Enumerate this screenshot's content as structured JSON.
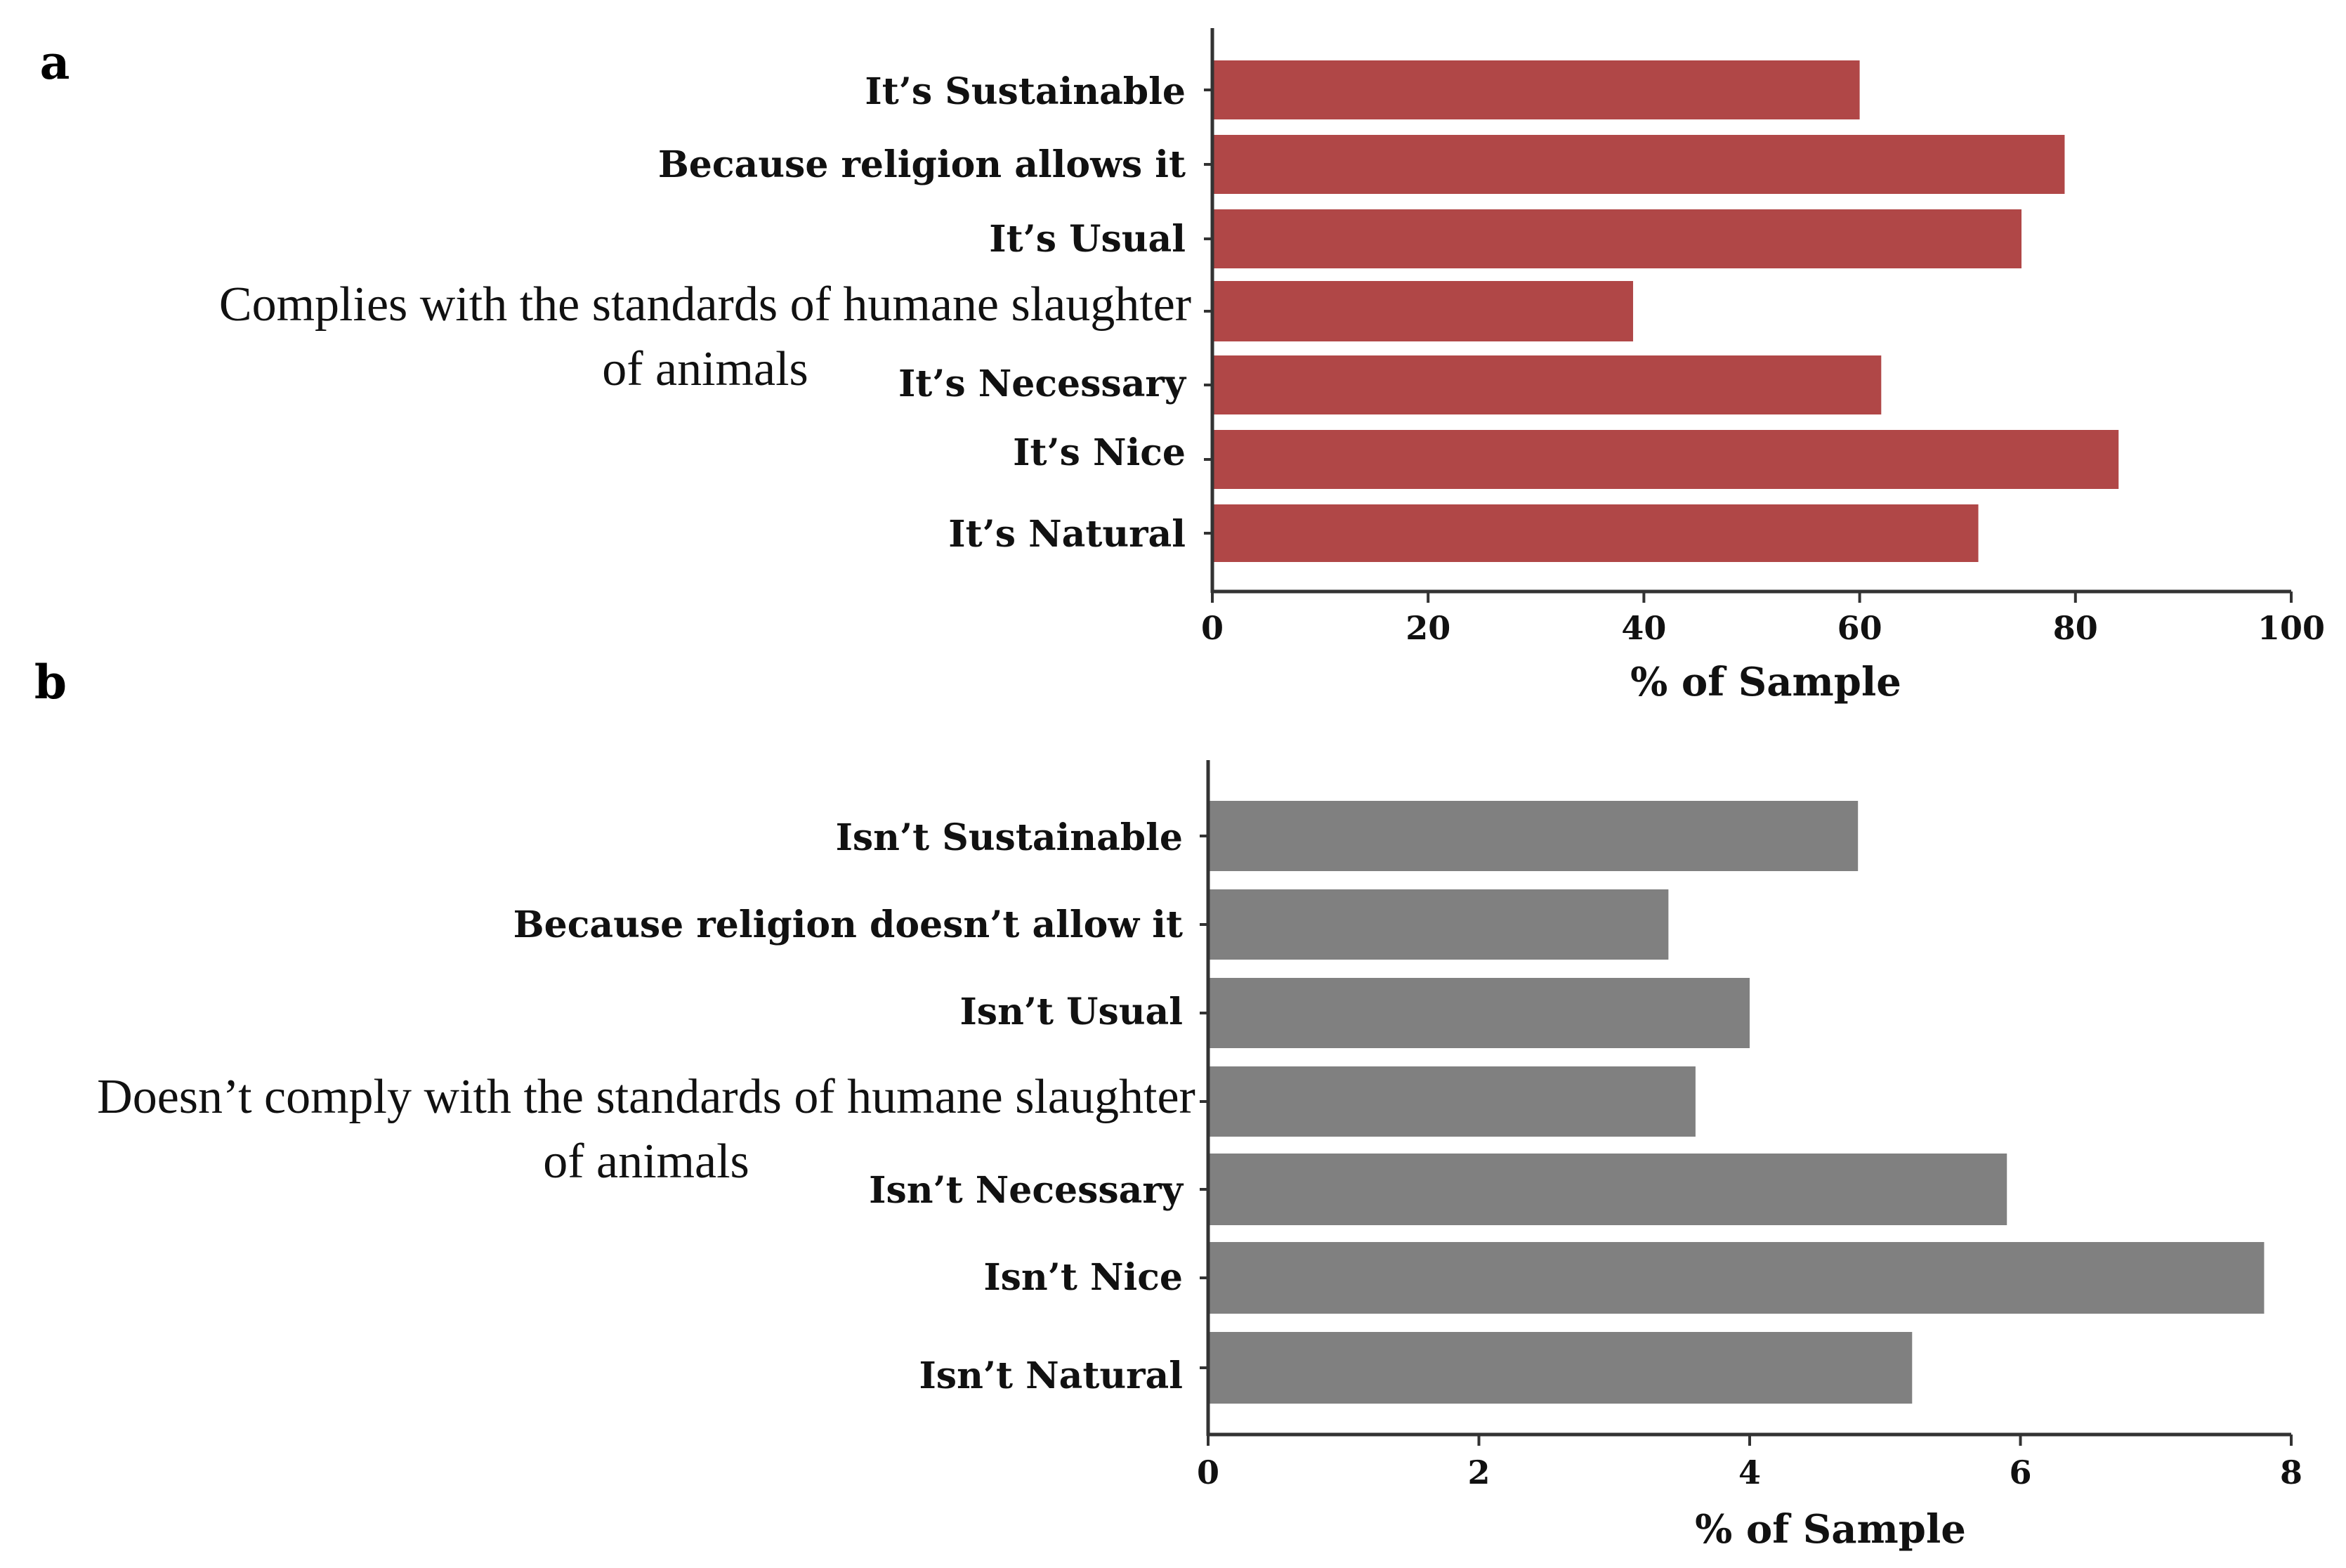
{
  "chart_data": [
    {
      "panel": "a",
      "type": "bar",
      "orientation": "horizontal",
      "categories": [
        "It’s Sustainable",
        "Because religion allows it",
        "It’s Usual",
        "Complies with the standards of humane slaughter of animals",
        "It’s Necessary",
        "It’s Nice",
        "It’s Natural"
      ],
      "display_labels": [
        [
          "It’s Sustainable"
        ],
        [
          "Because religion allows it"
        ],
        [
          "It’s Usual"
        ],
        [
          "Complies with the standards of humane slaughter",
          "of animals"
        ],
        [
          "It’s Necessary"
        ],
        [
          "It’s Nice"
        ],
        [
          "It’s Natural"
        ]
      ],
      "values": [
        60,
        79,
        75,
        39,
        62,
        84,
        71
      ],
      "xlabel": "% of Sample",
      "ylabel": "",
      "xlim": [
        0,
        100
      ],
      "xticks": [
        0,
        20,
        40,
        60,
        80,
        100
      ],
      "tick_labels": [
        "0",
        "20",
        "40",
        "60",
        "80",
        "100"
      ],
      "color": "#b04747",
      "grid": false
    },
    {
      "panel": "b",
      "type": "bar",
      "orientation": "horizontal",
      "categories": [
        "Isn’t Sustainable",
        "Because religion doesn’t allow it",
        "Isn’t Usual",
        "Doesn’t comply with the standards of humane slaughter of animals",
        "Isn’t Necessary",
        "Isn’t Nice",
        "Isn’t Natural"
      ],
      "display_labels": [
        [
          "Isn’t Sustainable"
        ],
        [
          "Because religion doesn’t allow it"
        ],
        [
          "Isn’t Usual"
        ],
        [
          "Doesn’t comply with the standards of humane slaughter",
          "of animals"
        ],
        [
          "Isn’t Necessary"
        ],
        [
          "Isn’t Nice"
        ],
        [
          "Isn’t Natural"
        ]
      ],
      "values": [
        4.8,
        3.4,
        4.0,
        3.6,
        5.9,
        7.8,
        5.2
      ],
      "xlabel": "% of Sample",
      "ylabel": "",
      "xlim": [
        0,
        8
      ],
      "xticks": [
        0,
        2,
        4,
        6,
        8
      ],
      "tick_labels": [
        "0",
        "2",
        "4",
        "6",
        "8"
      ],
      "color": "#808080",
      "grid": false
    }
  ]
}
